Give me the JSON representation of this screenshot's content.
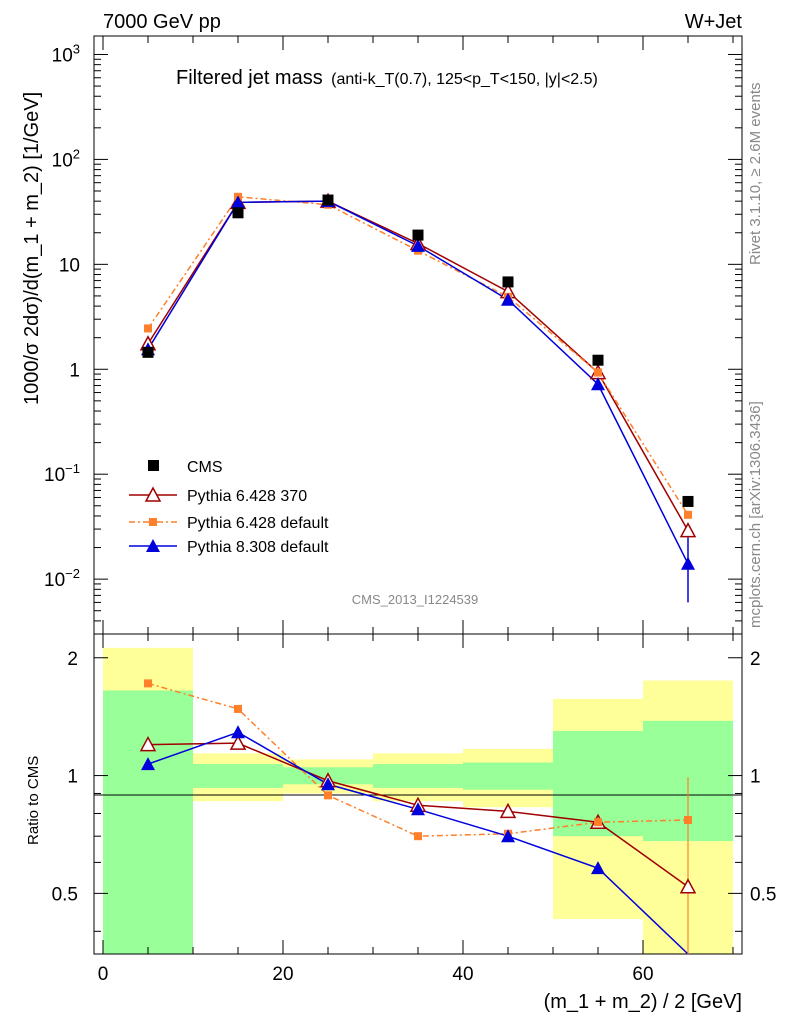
{
  "header": {
    "left": "7000 GeV pp",
    "right": "W+Jet"
  },
  "title": {
    "main": "Filtered jet mass",
    "selection": "(anti-k_T(0.7), 125<p_T<150, |y|<2.5)"
  },
  "side": {
    "rivet": "Rivet 3.1.10, ≥ 2.6M events",
    "source": "mcplots.cern.ch [arXiv:1306.3436]"
  },
  "watermark": "CMS_2013_I1224539",
  "ylabel_top": "1000/σ 2dσ)/d(m_1 + m_2) [1/GeV]",
  "ylabel_ratio": "Ratio to CMS",
  "xlabel": "(m_1 + m_2) / 2 [GeV]",
  "legend": {
    "cms": "CMS",
    "p6_370": "Pythia 6.428 370",
    "p6_def": "Pythia 6.428 default",
    "p8_def": "Pythia 8.308 default"
  },
  "colors": {
    "cms": "#000000",
    "p6_370": "#a00000",
    "p6_def": "#ff7f2a",
    "p8_def": "#0000dd",
    "band_inner": "#99ff99",
    "band_outer": "#ffff99"
  },
  "chart_data": {
    "type": "scatter",
    "x_bins": [
      [
        0,
        10
      ],
      [
        10,
        20
      ],
      [
        20,
        30
      ],
      [
        30,
        40
      ],
      [
        40,
        50
      ],
      [
        50,
        60
      ],
      [
        60,
        70
      ]
    ],
    "x": [
      5,
      15,
      25,
      35,
      45,
      55,
      65
    ],
    "xlim": [
      -1,
      71
    ],
    "xticks": [
      0,
      20,
      40,
      60
    ],
    "ylim_top": [
      0.003,
      1500
    ],
    "yscale_top": "log",
    "yticks_top": [
      "10^-2",
      "10^-1",
      "1",
      "10",
      "10^2",
      "10^3"
    ],
    "ylim_ratio": [
      0.35,
      2.3
    ],
    "yticks_ratio": [
      "0.5",
      "1",
      "2"
    ],
    "cms": [
      1.45,
      31,
      41,
      19,
      6.8,
      1.22,
      0.055
    ],
    "cms_band_inner": [
      [
        0.35,
        1.65
      ],
      [
        0.93,
        1.07
      ],
      [
        0.95,
        1.05
      ],
      [
        0.93,
        1.07
      ],
      [
        0.92,
        1.08
      ],
      [
        0.7,
        1.3
      ],
      [
        0.68,
        1.38
      ]
    ],
    "cms_band_outer": [
      [
        0.35,
        2.12
      ],
      [
        0.86,
        1.14
      ],
      [
        0.9,
        1.1
      ],
      [
        0.86,
        1.14
      ],
      [
        0.83,
        1.17
      ],
      [
        0.43,
        1.57
      ],
      [
        0.35,
        1.75
      ]
    ],
    "series": [
      {
        "name": "Pythia 6.428 370",
        "values": [
          1.75,
          39,
          40,
          15.8,
          5.5,
          0.93,
          0.029
        ],
        "ratio": [
          1.2,
          1.21,
          0.97,
          0.84,
          0.81,
          0.76,
          0.52
        ]
      },
      {
        "name": "Pythia 6.428 default",
        "values": [
          2.45,
          44,
          37,
          13.5,
          4.9,
          0.93,
          0.041
        ],
        "ratio": [
          1.72,
          1.48,
          0.89,
          0.7,
          0.71,
          0.76,
          0.77
        ]
      },
      {
        "name": "Pythia 8.308 default",
        "values": [
          1.55,
          39,
          40,
          15,
          4.6,
          0.72,
          0.014
        ],
        "ratio": [
          1.07,
          1.29,
          0.95,
          0.82,
          0.7,
          0.58,
          0.25
        ]
      }
    ]
  }
}
